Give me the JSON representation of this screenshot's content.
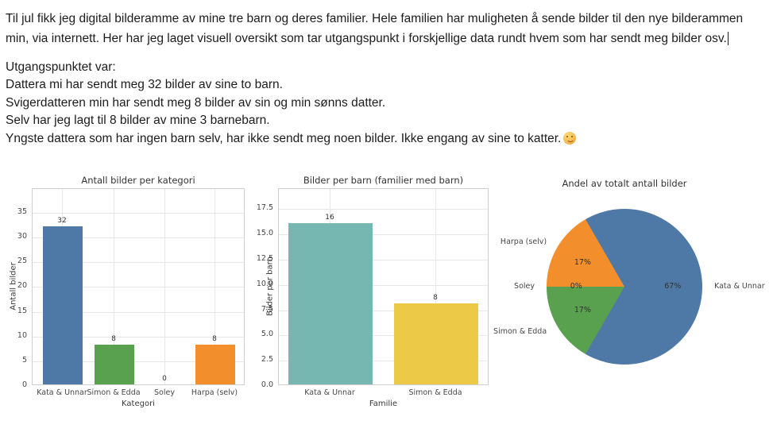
{
  "document": {
    "intro": "Til jul fikk jeg digital bilderamme av mine tre barn og deres familier. Hele familien har muligheten å sende bilder til den nye bilderammen min, via internett. Her har jeg laget visuell oversikt som tar utgangspunkt i forskjellige data rundt hvem som har sendt meg bilder osv.",
    "lines": [
      "Utgangspunktet var:",
      "Dattera mi har sendt meg 32 bilder av sine to barn.",
      "Svigerdatteren min har sendt meg 8 bilder av sin og min sønns datter.",
      "Selv har jeg lagt til 8 bilder av mine 3 barnebarn.",
      "Yngste dattera som har ingen barn selv, har ikke sendt meg noen bilder. Ikke engang av sine to katter."
    ],
    "emoji": "😊"
  },
  "chart_data": [
    {
      "type": "bar",
      "title": "Antall bilder per kategori",
      "xlabel": "Kategori",
      "ylabel": "Antall bilder",
      "categories": [
        "Kata & Unnar",
        "Simon & Edda",
        "Soley",
        "Harpa (selv)"
      ],
      "values": [
        32,
        8,
        0,
        8
      ],
      "value_labels": [
        "32",
        "8",
        "0",
        "8"
      ],
      "bar_colors": [
        "#4e79a7",
        "#59a14f",
        "#e15759",
        "#f28e2b"
      ],
      "yticks": [
        0,
        5,
        10,
        15,
        20,
        25,
        30,
        35
      ],
      "ytick_labels": [
        "0",
        "5",
        "10",
        "15",
        "20",
        "25",
        "30",
        "35"
      ],
      "ylim": [
        0,
        39.8
      ],
      "grid": true
    },
    {
      "type": "bar",
      "title": "Bilder per barn (familier med barn)",
      "xlabel": "Familie",
      "ylabel": "Bilder per barn",
      "categories": [
        "Kata & Unnar",
        "Simon & Edda"
      ],
      "values": [
        16,
        8
      ],
      "value_labels": [
        "16",
        "8"
      ],
      "bar_colors": [
        "#76b7b2",
        "#edc948"
      ],
      "yticks": [
        0,
        2.5,
        5,
        7.5,
        10,
        12.5,
        15,
        17.5
      ],
      "ytick_labels": [
        "0.0",
        "2.5",
        "5.0",
        "7.5",
        "10.0",
        "12.5",
        "15.0",
        "17.5"
      ],
      "ylim": [
        0,
        19.5
      ],
      "grid": true
    },
    {
      "type": "pie",
      "title": "Andel av totalt antall bilder",
      "start_angle": 120,
      "direction": "counterclockwise",
      "slices": [
        {
          "label": "Harpa (selv)",
          "value": 8,
          "pct_label": "17%",
          "color": "#f28e2b"
        },
        {
          "label": "Soley",
          "value": 0,
          "pct_label": "0%",
          "color": "#e15759"
        },
        {
          "label": "Simon & Edda",
          "value": 8,
          "pct_label": "17%",
          "color": "#59a14f"
        },
        {
          "label": "Kata & Unnar",
          "value": 32,
          "pct_label": "67%",
          "color": "#4e79a7"
        }
      ]
    }
  ]
}
